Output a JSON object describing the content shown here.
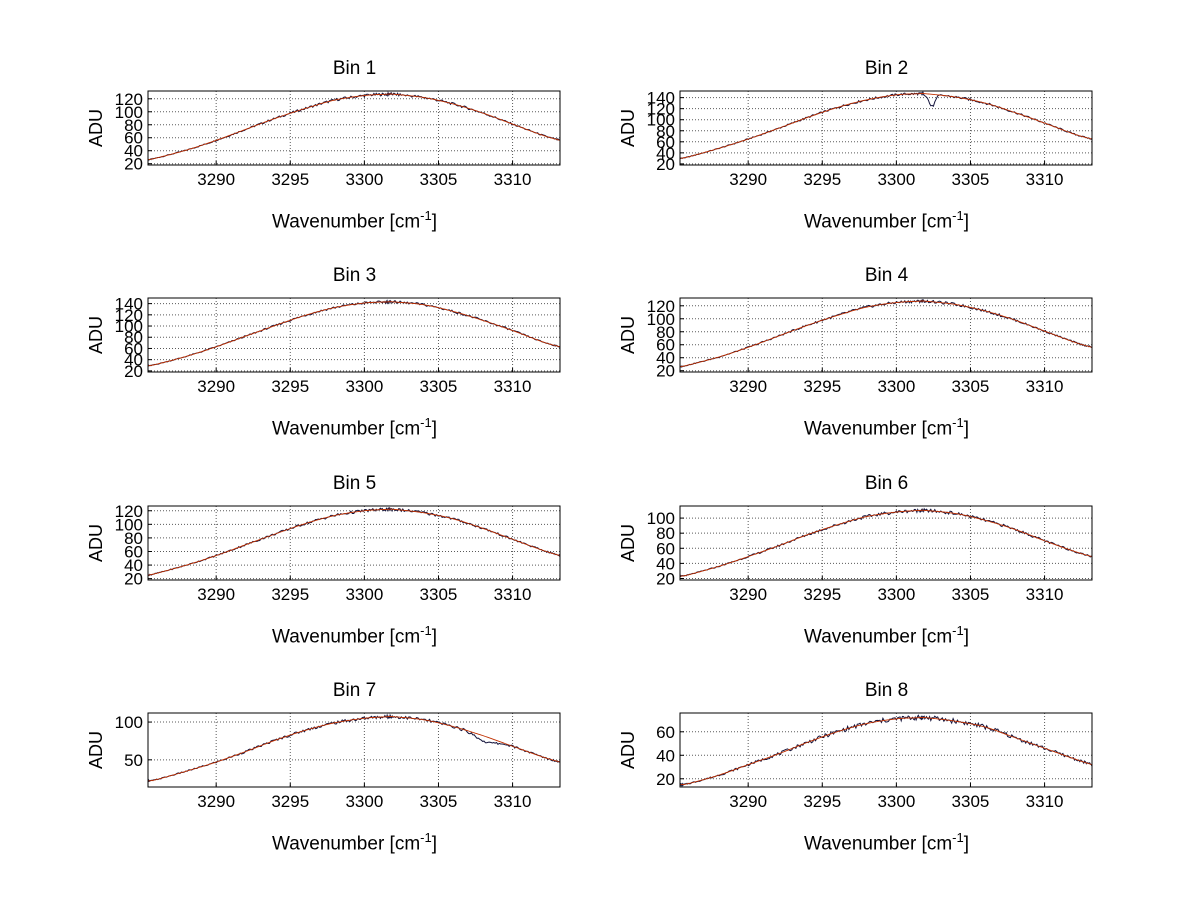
{
  "figure": {
    "background": "#ffffff"
  },
  "labels": {
    "ylabel": "ADU",
    "xlabel_main": "Wavenumber [cm",
    "xlabel_sup": "-1",
    "xlabel_close": "]"
  },
  "colors": {
    "data": "#14143c",
    "fit": "#c03000",
    "grid": "#5a5a5a",
    "axis": "#000000",
    "text": "#000000"
  },
  "chart_data": [
    {
      "type": "line",
      "title": "Bin 1",
      "xlabel": "Wavenumber [cm⁻¹]",
      "ylabel": "ADU",
      "x": [
        3285.4,
        3286,
        3288,
        3290,
        3292,
        3294,
        3296,
        3298,
        3300,
        3301.5,
        3302,
        3304,
        3306,
        3308,
        3310,
        3312,
        3313.2
      ],
      "values": [
        26,
        29,
        41,
        56,
        73,
        90,
        105,
        118,
        125,
        127,
        127,
        122,
        112,
        98,
        81,
        64,
        56
      ],
      "xlim": [
        3285.4,
        3313.2
      ],
      "ylim": [
        18,
        132
      ],
      "xticks": [
        3290,
        3295,
        3300,
        3305,
        3310
      ],
      "yticks": [
        20,
        40,
        60,
        80,
        100,
        120
      ],
      "grid": true
    },
    {
      "type": "line",
      "title": "Bin 2",
      "xlabel": "Wavenumber [cm⁻¹]",
      "ylabel": "ADU",
      "x": [
        3285.4,
        3286,
        3288,
        3290,
        3292,
        3294,
        3296,
        3298,
        3300,
        3301.5,
        3302,
        3304,
        3306,
        3308,
        3310,
        3312,
        3313.2
      ],
      "values": [
        30,
        33,
        48,
        65,
        84,
        104,
        122,
        136,
        145,
        147,
        147,
        141,
        130,
        113,
        94,
        74,
        65
      ],
      "xlim": [
        3285.4,
        3313.2
      ],
      "ylim": [
        18,
        152
      ],
      "xticks": [
        3290,
        3295,
        3300,
        3305,
        3310
      ],
      "yticks": [
        20,
        40,
        60,
        80,
        100,
        120,
        140
      ],
      "spike": {
        "x": 3302.4,
        "depth": 22,
        "width": 0.5
      },
      "grid": true
    },
    {
      "type": "line",
      "title": "Bin 3",
      "xlabel": "Wavenumber [cm⁻¹]",
      "ylabel": "ADU",
      "x": [
        3285.4,
        3286,
        3288,
        3290,
        3292,
        3294,
        3296,
        3298,
        3300,
        3301.5,
        3302,
        3304,
        3306,
        3308,
        3310,
        3312,
        3313.2
      ],
      "values": [
        29,
        32,
        46,
        63,
        82,
        101,
        119,
        133,
        141,
        143,
        143,
        138,
        126,
        110,
        92,
        72,
        63
      ],
      "xlim": [
        3285.4,
        3313.2
      ],
      "ylim": [
        18,
        150
      ],
      "xticks": [
        3290,
        3295,
        3300,
        3305,
        3310
      ],
      "yticks": [
        20,
        40,
        60,
        80,
        100,
        120,
        140
      ],
      "grid": true
    },
    {
      "type": "line",
      "title": "Bin 4",
      "xlabel": "Wavenumber [cm⁻¹]",
      "ylabel": "ADU",
      "x": [
        3285.4,
        3286,
        3288,
        3290,
        3292,
        3294,
        3296,
        3298,
        3300,
        3301.5,
        3302,
        3304,
        3306,
        3308,
        3310,
        3312,
        3313.2
      ],
      "values": [
        26,
        29,
        41,
        56,
        73,
        90,
        105,
        118,
        125,
        127,
        127,
        122,
        112,
        98,
        81,
        64,
        56
      ],
      "xlim": [
        3285.4,
        3313.2
      ],
      "ylim": [
        18,
        132
      ],
      "xticks": [
        3290,
        3295,
        3300,
        3305,
        3310
      ],
      "yticks": [
        20,
        40,
        60,
        80,
        100,
        120
      ],
      "grid": true
    },
    {
      "type": "line",
      "title": "Bin 5",
      "xlabel": "Wavenumber [cm⁻¹]",
      "ylabel": "ADU",
      "x": [
        3285.4,
        3286,
        3288,
        3290,
        3292,
        3294,
        3296,
        3298,
        3300,
        3301.5,
        3302,
        3304,
        3306,
        3308,
        3310,
        3312,
        3313.2
      ],
      "values": [
        25,
        28,
        40,
        54,
        70,
        86,
        101,
        113,
        120,
        122,
        122,
        117,
        108,
        94,
        78,
        62,
        54
      ],
      "xlim": [
        3285.4,
        3313.2
      ],
      "ylim": [
        18,
        127
      ],
      "xticks": [
        3290,
        3295,
        3300,
        3305,
        3310
      ],
      "yticks": [
        20,
        40,
        60,
        80,
        100,
        120
      ],
      "grid": true
    },
    {
      "type": "line",
      "title": "Bin 6",
      "xlabel": "Wavenumber [cm⁻¹]",
      "ylabel": "ADU",
      "x": [
        3285.4,
        3286,
        3288,
        3290,
        3292,
        3294,
        3296,
        3298,
        3300,
        3301.5,
        3302,
        3304,
        3306,
        3308,
        3310,
        3312,
        3313.2
      ],
      "values": [
        23,
        25,
        36,
        49,
        63,
        78,
        91,
        102,
        108,
        110,
        110,
        106,
        97,
        85,
        70,
        56,
        49
      ],
      "xlim": [
        3285.4,
        3313.2
      ],
      "ylim": [
        18,
        116
      ],
      "xticks": [
        3290,
        3295,
        3300,
        3305,
        3310
      ],
      "yticks": [
        20,
        40,
        60,
        80,
        100
      ],
      "grid": true
    },
    {
      "type": "line",
      "title": "Bin 7",
      "xlabel": "Wavenumber [cm⁻¹]",
      "ylabel": "ADU",
      "x": [
        3285.4,
        3286,
        3288,
        3290,
        3292,
        3294,
        3296,
        3298,
        3300,
        3301.5,
        3302,
        3304,
        3306,
        3308,
        3310,
        3312,
        3313.2
      ],
      "values": [
        22,
        24,
        35,
        47,
        61,
        76,
        89,
        99,
        105,
        107,
        107,
        103,
        94,
        82,
        68,
        54,
        47
      ],
      "xlim": [
        3285.4,
        3313.2
      ],
      "ylim": [
        14,
        112
      ],
      "xticks": [
        3290,
        3295,
        3300,
        3305,
        3310
      ],
      "yticks": [
        50,
        100
      ],
      "dip": {
        "x": 3308.2,
        "depth": 7,
        "width": 1.6
      },
      "grid": true
    },
    {
      "type": "line",
      "title": "Bin 8",
      "xlabel": "Wavenumber [cm⁻¹]",
      "ylabel": "ADU",
      "x": [
        3285.4,
        3286,
        3288,
        3290,
        3292,
        3294,
        3296,
        3298,
        3300,
        3301.5,
        3302,
        3304,
        3306,
        3308,
        3310,
        3312,
        3313.2
      ],
      "values": [
        15,
        16,
        23,
        32,
        41,
        51,
        60,
        67,
        71,
        72,
        72,
        69,
        64,
        55,
        46,
        37,
        32
      ],
      "xlim": [
        3285.4,
        3313.2
      ],
      "ylim": [
        13,
        76
      ],
      "xticks": [
        3290,
        3295,
        3300,
        3305,
        3310
      ],
      "yticks": [
        20,
        40,
        60
      ],
      "grid": true
    }
  ]
}
